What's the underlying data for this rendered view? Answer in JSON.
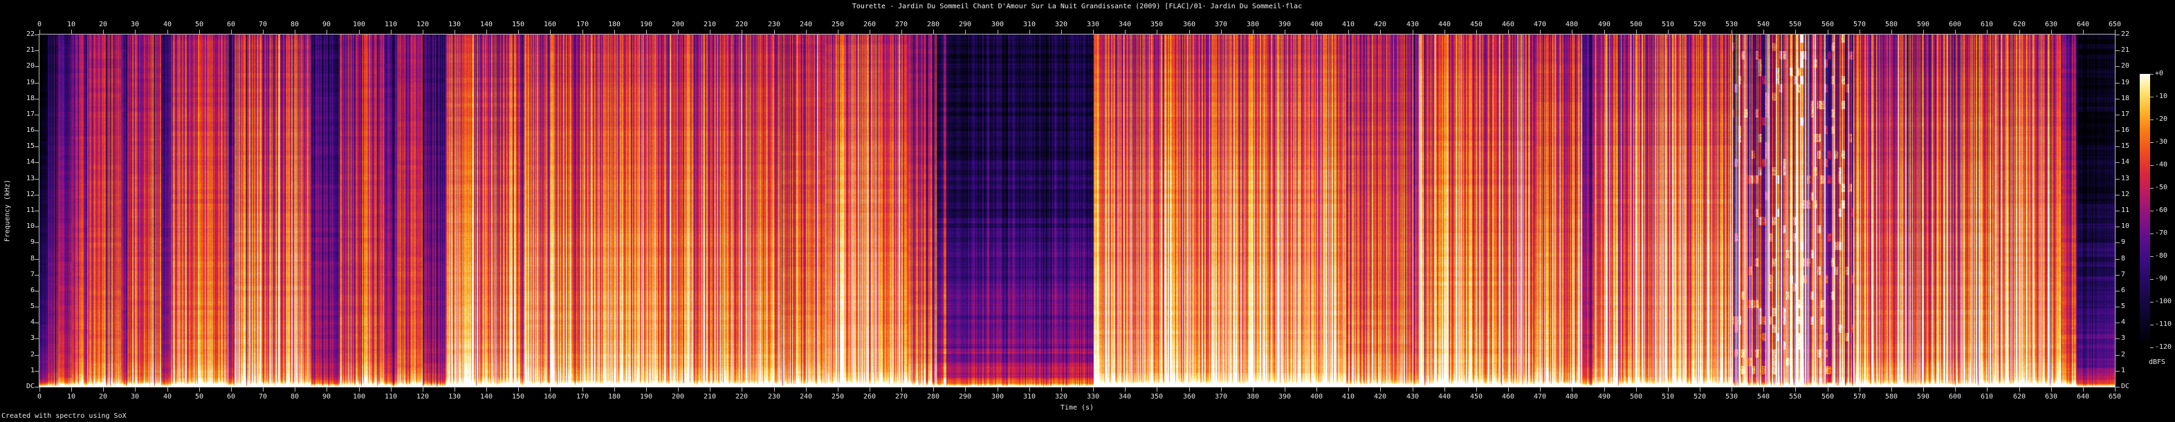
{
  "title": "Tourette - Jardin Du Sommeil Chant D'Amour Sur La Nuit Grandissante (2009) [FLAC]/01· Jardin Du Sommeil·flac",
  "footer": "Created with spectro using SoX",
  "axes": {
    "x_label": "Time (s)",
    "y_label": "Frequency (kHz)",
    "colorbar_label": "dBFS",
    "time_ticks": [
      0,
      10,
      20,
      30,
      40,
      50,
      60,
      70,
      80,
      90,
      100,
      110,
      120,
      130,
      140,
      150,
      160,
      170,
      180,
      190,
      200,
      210,
      220,
      230,
      240,
      250,
      260,
      270,
      280,
      290,
      300,
      310,
      320,
      330,
      340,
      350,
      360,
      370,
      380,
      390,
      400,
      410,
      420,
      430,
      440,
      450,
      460,
      470,
      480,
      490,
      500,
      510,
      520,
      530,
      540,
      550,
      560,
      570,
      580,
      590,
      600,
      610,
      620,
      630,
      640,
      650
    ],
    "freq_ticks": [
      "22",
      "21",
      "20",
      "19",
      "18",
      "17",
      "16",
      "15",
      "14",
      "13",
      "12",
      "11",
      "10",
      "9",
      "8",
      "7",
      "6",
      "5",
      "4",
      "3",
      "2",
      "1",
      "DC"
    ],
    "db_ticks": [
      "+0",
      "-10",
      "-20",
      "-30",
      "-40",
      "-50",
      "-60",
      "-70",
      "-80",
      "-90",
      "-100",
      "-110",
      "-120"
    ]
  },
  "colors": {
    "background": "#000000",
    "text": "#e6e6e6",
    "axis": "#b9b9b9"
  },
  "chart_data": {
    "type": "heatmap",
    "subtype": "audio-spectrogram",
    "title": "Tourette - Jardin Du Sommeil Chant D'Amour Sur La Nuit Grandissante (2009) [FLAC]/01· Jardin Du Sommeil·flac",
    "xlabel": "Time (s)",
    "ylabel": "Frequency (kHz)",
    "x_range_s": [
      0,
      650
    ],
    "y_range_khz": [
      0,
      22
    ],
    "z_range_dbfs": [
      -120,
      0
    ],
    "legend_position": "right-colorbar",
    "grid": false,
    "palette_stops": [
      [
        0.0,
        0,
        0,
        0
      ],
      [
        0.08,
        8,
        4,
        32
      ],
      [
        0.16,
        20,
        8,
        64
      ],
      [
        0.24,
        36,
        10,
        98
      ],
      [
        0.32,
        60,
        12,
        130
      ],
      [
        0.4,
        95,
        15,
        140
      ],
      [
        0.48,
        140,
        18,
        130
      ],
      [
        0.56,
        185,
        25,
        100
      ],
      [
        0.64,
        220,
        40,
        60
      ],
      [
        0.72,
        240,
        80,
        30
      ],
      [
        0.8,
        250,
        130,
        20
      ],
      [
        0.87,
        255,
        185,
        45
      ],
      [
        0.93,
        255,
        225,
        110
      ],
      [
        0.97,
        255,
        245,
        180
      ],
      [
        1.0,
        255,
        255,
        255
      ]
    ],
    "segments": [
      {
        "t0": 0,
        "t1": 2.5,
        "bot": 0.42,
        "top": 0.02,
        "shape": 1.4,
        "cv": 0.05,
        "rv": 0.02
      },
      {
        "t0": 2.5,
        "t1": 6,
        "bot": 0.55,
        "top": 0.2,
        "shape": 1.1,
        "cv": 0.07,
        "rv": 0.02
      },
      {
        "t0": 6,
        "t1": 10,
        "bot": 0.6,
        "top": 0.3,
        "shape": 1.0,
        "cv": 0.09,
        "rv": 0.02
      },
      {
        "t0": 10,
        "t1": 15,
        "bot": 0.66,
        "top": 0.42,
        "shape": 1.0,
        "cv": 0.1,
        "rv": 0.02
      },
      {
        "t0": 15,
        "t1": 25.5,
        "bot": 0.74,
        "top": 0.52,
        "shape": 0.9,
        "cv": 0.09,
        "rv": 0.02
      },
      {
        "t0": 25.5,
        "t1": 27.5,
        "bot": 0.52,
        "top": 0.3,
        "shape": 1.0,
        "cv": 0.06,
        "rv": 0.02
      },
      {
        "t0": 27.5,
        "t1": 38,
        "bot": 0.72,
        "top": 0.5,
        "shape": 0.9,
        "cv": 0.1,
        "rv": 0.02
      },
      {
        "t0": 38,
        "t1": 41,
        "bot": 0.52,
        "top": 0.28,
        "shape": 1.0,
        "cv": 0.06,
        "rv": 0.02
      },
      {
        "t0": 41,
        "t1": 59,
        "bot": 0.78,
        "top": 0.54,
        "shape": 0.9,
        "cv": 0.1,
        "rv": 0.02
      },
      {
        "t0": 59,
        "t1": 61,
        "bot": 0.55,
        "top": 0.32,
        "shape": 1.0,
        "cv": 0.06,
        "rv": 0.02
      },
      {
        "t0": 61,
        "t1": 85,
        "bot": 0.8,
        "top": 0.55,
        "shape": 0.85,
        "cv": 0.12,
        "rv": 0.02
      },
      {
        "t0": 85,
        "t1": 94,
        "bot": 0.52,
        "top": 0.26,
        "shape": 1.0,
        "cv": 0.07,
        "rv": 0.03
      },
      {
        "t0": 94,
        "t1": 108,
        "bot": 0.7,
        "top": 0.48,
        "shape": 0.9,
        "cv": 0.11,
        "rv": 0.02
      },
      {
        "t0": 108,
        "t1": 112,
        "bot": 0.54,
        "top": 0.3,
        "shape": 1.0,
        "cv": 0.06,
        "rv": 0.02
      },
      {
        "t0": 112,
        "t1": 120,
        "bot": 0.7,
        "top": 0.48,
        "shape": 0.9,
        "cv": 0.1,
        "rv": 0.02
      },
      {
        "t0": 120,
        "t1": 127,
        "bot": 0.54,
        "top": 0.28,
        "shape": 1.0,
        "cv": 0.07,
        "rv": 0.02
      },
      {
        "t0": 127,
        "t1": 152,
        "bot": 0.84,
        "top": 0.56,
        "shape": 0.85,
        "cv": 0.11,
        "rv": 0.02
      },
      {
        "t0": 152,
        "t1": 232,
        "bot": 0.86,
        "top": 0.58,
        "shape": 0.85,
        "cv": 0.11,
        "rv": 0.02
      },
      {
        "t0": 232,
        "t1": 246,
        "bot": 0.8,
        "top": 0.54,
        "shape": 0.9,
        "cv": 0.1,
        "rv": 0.02
      },
      {
        "t0": 246,
        "t1": 272,
        "bot": 0.86,
        "top": 0.58,
        "shape": 0.85,
        "cv": 0.11,
        "rv": 0.02
      },
      {
        "t0": 272,
        "t1": 281,
        "bot": 0.7,
        "top": 0.4,
        "shape": 1.0,
        "cv": 0.12,
        "rv": 0.02
      },
      {
        "t0": 281,
        "t1": 330,
        "bot": 0.52,
        "top": 0.13,
        "shape": 1.8,
        "cv": 0.05,
        "rv": 0.055
      },
      {
        "t0": 330,
        "t1": 409,
        "bot": 0.88,
        "top": 0.6,
        "shape": 0.85,
        "cv": 0.11,
        "rv": 0.02
      },
      {
        "t0": 409,
        "t1": 430,
        "bot": 0.8,
        "top": 0.55,
        "shape": 0.9,
        "cv": 0.1,
        "rv": 0.02
      },
      {
        "t0": 430,
        "t1": 468,
        "bot": 0.86,
        "top": 0.6,
        "shape": 0.85,
        "cv": 0.11,
        "rv": 0.02
      },
      {
        "t0": 468,
        "t1": 483,
        "bot": 0.82,
        "top": 0.56,
        "shape": 0.85,
        "cv": 0.12,
        "rv": 0.02
      },
      {
        "t0": 483,
        "t1": 487,
        "bot": 0.6,
        "top": 0.35,
        "shape": 1.0,
        "cv": 0.07,
        "rv": 0.02
      },
      {
        "t0": 487,
        "t1": 530,
        "bot": 0.88,
        "top": 0.6,
        "shape": 0.8,
        "cv": 0.12,
        "rv": 0.02
      },
      {
        "t0": 530,
        "t1": 568,
        "bot": 0.78,
        "top": 0.52,
        "shape": 0.85,
        "cv": 0.2,
        "rv": 0.02,
        "blobs": true
      },
      {
        "t0": 568,
        "t1": 612,
        "bot": 0.84,
        "top": 0.57,
        "shape": 0.85,
        "cv": 0.12,
        "rv": 0.02
      },
      {
        "t0": 612,
        "t1": 633,
        "bot": 0.88,
        "top": 0.61,
        "shape": 0.8,
        "cv": 0.11,
        "rv": 0.02
      },
      {
        "t0": 633,
        "t1": 638,
        "bot": 0.7,
        "top": 0.4,
        "shape": 1.1,
        "cv": 0.08,
        "rv": 0.03
      },
      {
        "t0": 638,
        "t1": 650,
        "bot": 0.45,
        "top": 0.06,
        "shape": 2.0,
        "cv": 0.03,
        "rv": 0.06
      }
    ],
    "feature_lines": [
      {
        "t": 59.8,
        "v": 0.3
      },
      {
        "t": 283.5,
        "v": 0.6
      },
      {
        "t": 297,
        "v": 0.38
      },
      {
        "t": 305,
        "v": 0.33
      },
      {
        "t": 318,
        "v": 0.35
      },
      {
        "t": 430.5,
        "v": 0.35
      },
      {
        "t": 468.5,
        "v": 0.62
      },
      {
        "t": 585,
        "v": 0.4
      },
      {
        "t": 592,
        "v": 0.42
      }
    ]
  }
}
